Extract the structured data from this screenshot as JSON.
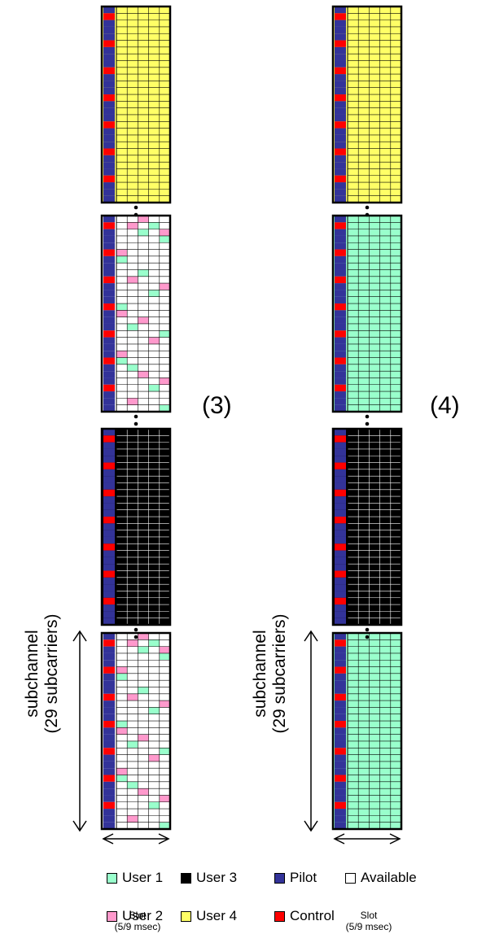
{
  "colors": {
    "user1": "#99ffcc",
    "user2": "#ff99cc",
    "user3": "#000000",
    "user4": "#ffff66",
    "pilot": "#333399",
    "control": "#ff0000",
    "available": "#ffffff"
  },
  "panels": [
    {
      "label": "(3)",
      "ylabel_line1": "subchannel",
      "ylabel_line2": "(29 subcarriers)",
      "slot_label": "Slot",
      "slot_sub": "(5/9 msec)",
      "blocks": [
        {
          "fill": "user4",
          "scatter": false
        },
        {
          "fill": "available",
          "scatter": true
        },
        {
          "fill": "user3",
          "scatter": false
        },
        {
          "fill": "available",
          "scatter": true
        }
      ]
    },
    {
      "label": "(4)",
      "ylabel_line1": "subchannel",
      "ylabel_line2": "(29 subcarriers)",
      "slot_label": "Slot",
      "slot_sub": "(5/9 msec)",
      "blocks": [
        {
          "fill": "user4",
          "scatter": false
        },
        {
          "fill": "user1",
          "scatter": false
        },
        {
          "fill": "user3",
          "scatter": false
        },
        {
          "fill": "user1",
          "scatter": false
        }
      ]
    }
  ],
  "legend": [
    {
      "label": "User 1",
      "color": "user1"
    },
    {
      "label": "User 3",
      "color": "user3"
    },
    {
      "label": "Pilot",
      "color": "pilot"
    },
    {
      "label": "Available",
      "color": "available"
    },
    {
      "label": "User 2",
      "color": "user2"
    },
    {
      "label": "User 4",
      "color": "user4"
    },
    {
      "label": "Control",
      "color": "control"
    }
  ]
}
